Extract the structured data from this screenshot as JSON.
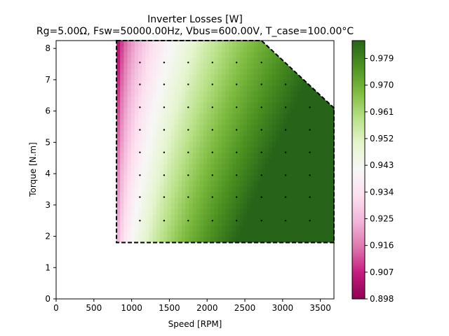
{
  "chart_data": {
    "type": "heatmap",
    "title": "Inverter Losses [W]",
    "subtitle": "Rg=5.00Ω, Fsw=50000.00Hz, Vbus=600.00V, T_case=100.00°C",
    "xlabel": "Speed [RPM]",
    "ylabel": "Torque [N.m]",
    "xlim": [
      0,
      3680
    ],
    "ylim": [
      0,
      8.25
    ],
    "x_ticks": [
      0,
      500,
      1000,
      1500,
      2000,
      2500,
      3000,
      3500
    ],
    "y_ticks": [
      0,
      1,
      2,
      3,
      4,
      5,
      6,
      7,
      8
    ],
    "colorbar": {
      "range": [
        0.898,
        0.985
      ],
      "ticks": [
        "0.898",
        "0.907",
        "0.916",
        "0.925",
        "0.934",
        "0.943",
        "0.952",
        "0.961",
        "0.970",
        "0.979"
      ],
      "colormap": "PiYG",
      "colors": [
        "#8e0152",
        "#c51b7d",
        "#de77ae",
        "#f1b6da",
        "#fde0ef",
        "#f7f7f7",
        "#e6f5d0",
        "#b8e186",
        "#7fbc41",
        "#4d9221",
        "#276419"
      ]
    },
    "grid": false,
    "legend": "none",
    "operating_region_boundary": [
      [
        800,
        8.25
      ],
      [
        2720,
        8.25
      ],
      [
        3680,
        6.1
      ],
      [
        3680,
        1.8
      ],
      [
        800,
        1.8
      ]
    ],
    "sample_speeds": [
      1110,
      1430,
      1750,
      2070,
      2390,
      2720,
      3040,
      3360
    ],
    "sample_torques": [
      2.5,
      3.25,
      3.95,
      4.68,
      5.4,
      6.12,
      6.85,
      7.55
    ]
  }
}
